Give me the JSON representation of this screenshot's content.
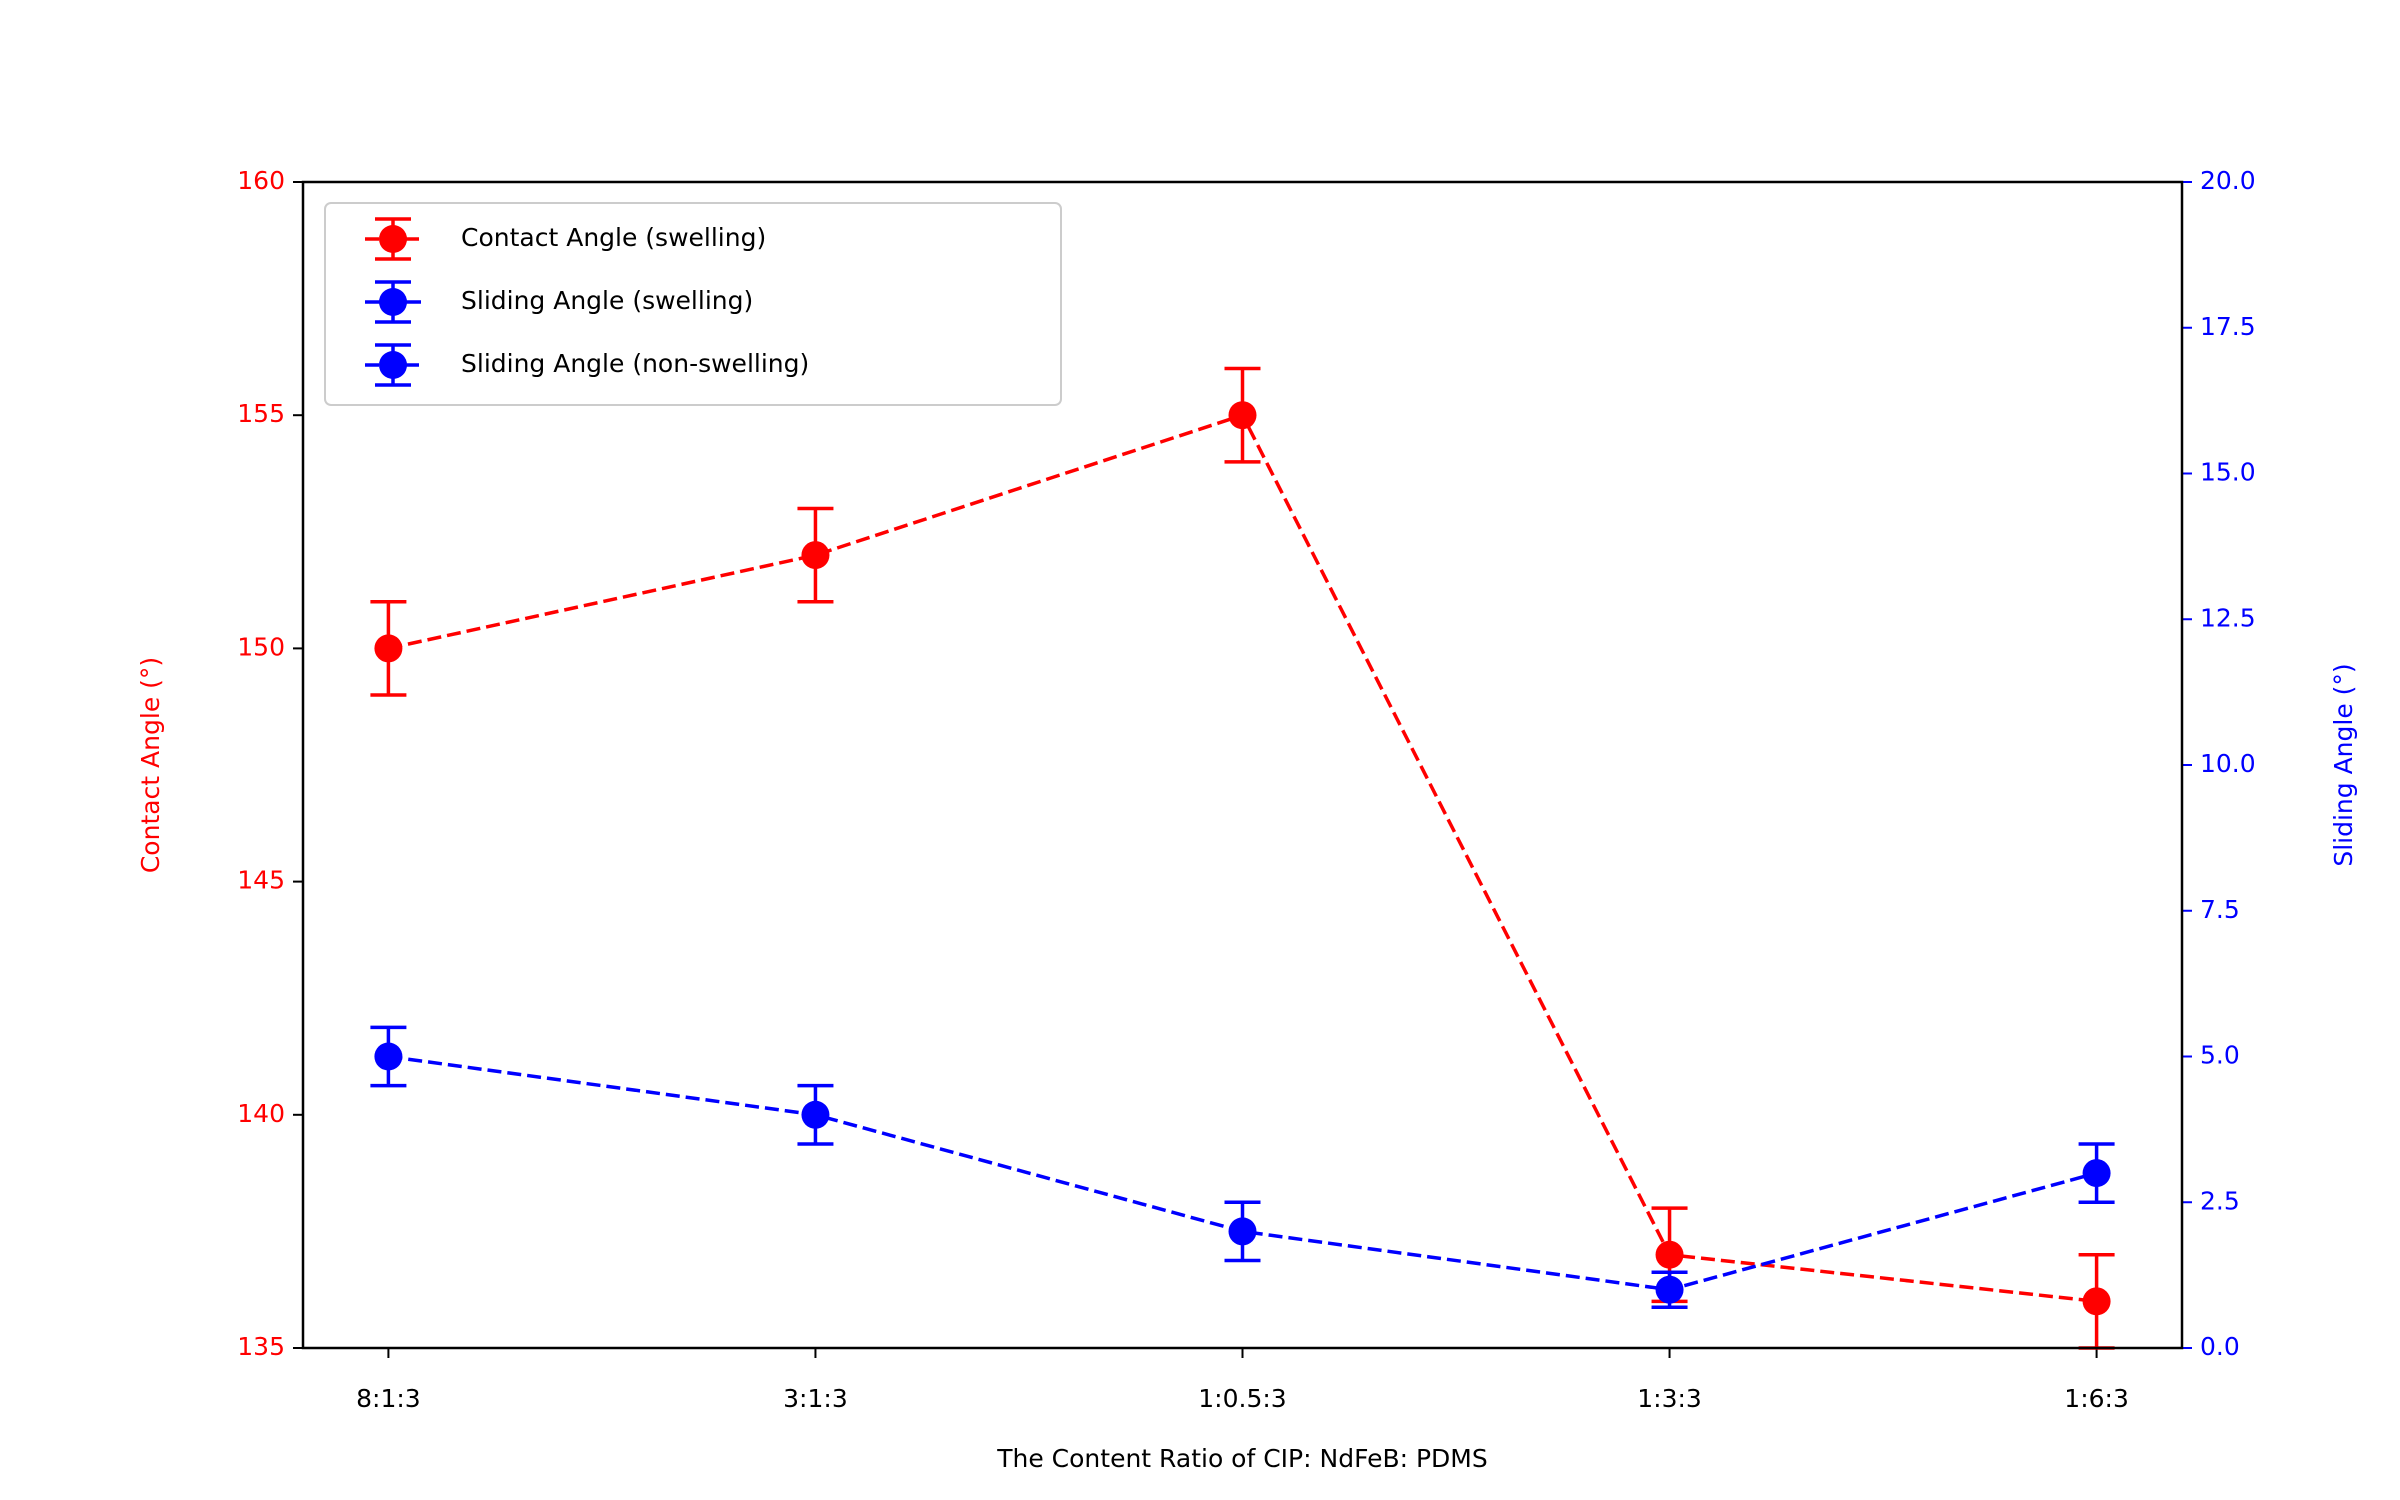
{
  "chart_data": {
    "type": "line",
    "x_label": "The Content Ratio of CIP: NdFeB: PDMS",
    "y_label": "Contact Angle (°)",
    "y2_label": "Sliding Angle (°)",
    "y_color": "#ff0000",
    "y2_color": "#0000ff",
    "categories": [
      "8:1:3",
      "3:1:3",
      "1:0.5:3",
      "1:3:3",
      "1:6:3"
    ],
    "series": [
      {
        "name": "Contact Angle (swelling)",
        "color": "#ff0000",
        "linestyle": "dashed",
        "axis": "y",
        "values": [
          150,
          152,
          155,
          137,
          136
        ],
        "errors": [
          1,
          1,
          1,
          1,
          1
        ]
      },
      {
        "name": "Sliding Angle (swelling)",
        "color": "#0000ff",
        "linestyle": "solid",
        "axis": "y2",
        "values": [
          null,
          null,
          null,
          null,
          null
        ],
        "errors": [
          null,
          null,
          null,
          null,
          null
        ]
      },
      {
        "name": "Sliding Angle (non-swelling)",
        "color": "#0000ff",
        "linestyle": "dashed",
        "axis": "y2",
        "values": [
          5,
          4,
          2,
          1,
          3
        ],
        "errors": [
          0.5,
          0.5,
          0.5,
          0.3,
          0.5
        ]
      }
    ],
    "ylim": [
      135,
      160
    ],
    "yticks": [
      135,
      140,
      145,
      150,
      155,
      160
    ],
    "y2lim": [
      0,
      20
    ],
    "y2ticks": [
      {
        "value": 0,
        "label": "0.0"
      },
      {
        "value": 2.5,
        "label": "2.5"
      },
      {
        "value": 5,
        "label": "5.0"
      },
      {
        "value": 7.5,
        "label": "7.5"
      },
      {
        "value": 10,
        "label": "10.0"
      },
      {
        "value": 12.5,
        "label": "12.5"
      },
      {
        "value": 15,
        "label": "15.0"
      },
      {
        "value": 17.5,
        "label": "17.5"
      },
      {
        "value": 20,
        "label": "20.0"
      }
    ],
    "legend": "upper left",
    "grid": false
  }
}
